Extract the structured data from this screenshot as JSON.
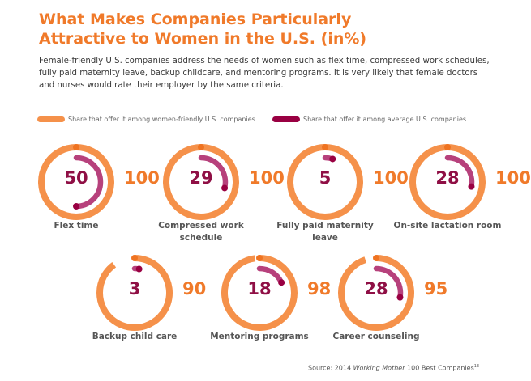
{
  "title": "What Makes Companies Particularly Attractive to Women in the U.S. (in%)",
  "intro": "Female-friendly U.S. companies address the needs of women such as flex time, compressed work schedules, fully paid maternity leave, backup childcare, and mentoring programs. It is very likely that female doctors and nurses would rate their employer by the same criteria.",
  "source_prefix": "Source: 2014 ",
  "source_italic": "Working Mother",
  "source_suffix": " 100 Best Companies",
  "source_note": "13",
  "colors": {
    "women_friendly": "#f5914a",
    "average": "#b7417c",
    "average_dot": "#990042"
  },
  "chart_data": {
    "type": "radial-bar",
    "title": "What Makes Companies Particularly Attractive to Women in the U.S. (in%)",
    "legend": [
      "Share that offer it among women-friendly U.S. companies",
      "Share that offer it among average U.S. companies"
    ],
    "legend_position": "top",
    "categories": [
      "Flex time",
      "Compressed work schedule",
      "Fully paid maternity leave",
      "On-site lactation room",
      "Backup child care",
      "Mentoring programs",
      "Career counseling"
    ],
    "series": [
      {
        "name": "Share that offer it among women-friendly U.S. companies",
        "values": [
          100,
          100,
          100,
          100,
          90,
          98,
          95
        ]
      },
      {
        "name": "Share that offer it among average U.S. companies",
        "values": [
          50,
          29,
          5,
          28,
          3,
          18,
          28
        ]
      }
    ],
    "range": [
      0,
      100
    ]
  }
}
